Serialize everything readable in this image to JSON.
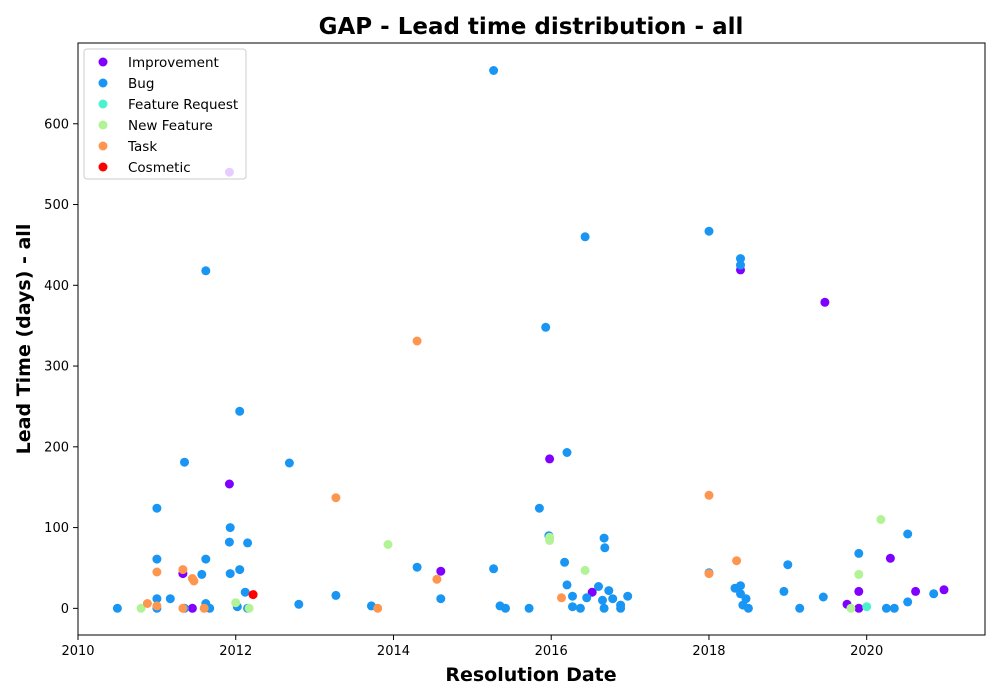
{
  "chart_data": {
    "type": "scatter",
    "title": "GAP - Lead time distribution - all",
    "xlabel": "Resolution Date",
    "ylabel": "Lead Time (days) - all",
    "xlim": [
      2010.0,
      2021.5
    ],
    "ylim": [
      -33,
      700
    ],
    "x_ticks": [
      2010,
      2012,
      2014,
      2016,
      2018,
      2020
    ],
    "y_ticks": [
      0,
      100,
      200,
      300,
      400,
      500,
      600
    ],
    "grid": false,
    "legend_position": "top-left",
    "series": [
      {
        "name": "Improvement",
        "color": "#8000ff",
        "points": [
          [
            2011.33,
            43
          ],
          [
            2011.45,
            0
          ],
          [
            2011.92,
            154
          ],
          [
            2011.92,
            540
          ],
          [
            2014.6,
            46
          ],
          [
            2015.98,
            185
          ],
          [
            2016.52,
            20
          ],
          [
            2018.4,
            419
          ],
          [
            2019.47,
            379
          ],
          [
            2019.75,
            5
          ],
          [
            2019.9,
            0
          ],
          [
            2019.9,
            21
          ],
          [
            2020.3,
            62
          ],
          [
            2020.62,
            21
          ],
          [
            2020.98,
            23
          ]
        ]
      },
      {
        "name": "Bug",
        "color": "#1996f3",
        "points": [
          [
            2010.5,
            0
          ],
          [
            2011.0,
            12
          ],
          [
            2011.0,
            0
          ],
          [
            2011.0,
            61
          ],
          [
            2011.0,
            124
          ],
          [
            2011.17,
            12
          ],
          [
            2011.35,
            181
          ],
          [
            2011.35,
            0
          ],
          [
            2011.57,
            42
          ],
          [
            2011.62,
            418
          ],
          [
            2011.62,
            61
          ],
          [
            2011.62,
            6
          ],
          [
            2011.67,
            0
          ],
          [
            2011.92,
            82
          ],
          [
            2011.93,
            100
          ],
          [
            2011.93,
            43
          ],
          [
            2012.02,
            2
          ],
          [
            2012.05,
            48
          ],
          [
            2012.05,
            244
          ],
          [
            2012.12,
            20
          ],
          [
            2012.15,
            81
          ],
          [
            2012.15,
            0
          ],
          [
            2012.68,
            180
          ],
          [
            2012.8,
            5
          ],
          [
            2013.27,
            16
          ],
          [
            2013.72,
            3
          ],
          [
            2014.3,
            51
          ],
          [
            2014.6,
            12
          ],
          [
            2015.27,
            49
          ],
          [
            2015.27,
            666
          ],
          [
            2015.35,
            3
          ],
          [
            2015.42,
            0
          ],
          [
            2015.72,
            0
          ],
          [
            2015.85,
            124
          ],
          [
            2015.93,
            348
          ],
          [
            2015.97,
            90
          ],
          [
            2016.17,
            57
          ],
          [
            2016.2,
            193
          ],
          [
            2016.2,
            29
          ],
          [
            2016.27,
            15
          ],
          [
            2016.27,
            2
          ],
          [
            2016.37,
            0
          ],
          [
            2016.43,
            460
          ],
          [
            2016.45,
            13
          ],
          [
            2016.6,
            27
          ],
          [
            2016.65,
            10
          ],
          [
            2016.67,
            0
          ],
          [
            2016.67,
            87
          ],
          [
            2016.68,
            75
          ],
          [
            2016.73,
            22
          ],
          [
            2016.78,
            12
          ],
          [
            2016.88,
            4
          ],
          [
            2016.88,
            0
          ],
          [
            2016.97,
            15
          ],
          [
            2018.0,
            467
          ],
          [
            2018.0,
            44
          ],
          [
            2018.33,
            25
          ],
          [
            2018.4,
            433
          ],
          [
            2018.4,
            425
          ],
          [
            2018.4,
            28
          ],
          [
            2018.4,
            18
          ],
          [
            2018.43,
            4
          ],
          [
            2018.47,
            12
          ],
          [
            2018.5,
            0
          ],
          [
            2018.95,
            21
          ],
          [
            2019.0,
            54
          ],
          [
            2019.15,
            0
          ],
          [
            2019.45,
            14
          ],
          [
            2019.9,
            68
          ],
          [
            2020.25,
            0
          ],
          [
            2020.35,
            0
          ],
          [
            2020.52,
            92
          ],
          [
            2020.52,
            8
          ],
          [
            2020.85,
            18
          ]
        ]
      },
      {
        "name": "Feature Request",
        "color": "#4cf2ce",
        "points": [
          [
            2020.0,
            2
          ]
        ]
      },
      {
        "name": "New Feature",
        "color": "#b2f396",
        "points": [
          [
            2010.8,
            0
          ],
          [
            2012.0,
            7
          ],
          [
            2012.17,
            0
          ],
          [
            2013.93,
            79
          ],
          [
            2015.98,
            84
          ],
          [
            2015.98,
            88
          ],
          [
            2016.43,
            47
          ],
          [
            2019.8,
            0
          ],
          [
            2019.9,
            42
          ],
          [
            2020.18,
            110
          ]
        ]
      },
      {
        "name": "Task",
        "color": "#ff964f",
        "points": [
          [
            2010.88,
            6
          ],
          [
            2011.0,
            45
          ],
          [
            2011.0,
            3
          ],
          [
            2011.33,
            48
          ],
          [
            2011.33,
            0
          ],
          [
            2011.45,
            37
          ],
          [
            2011.47,
            34
          ],
          [
            2011.6,
            0
          ],
          [
            2013.27,
            137
          ],
          [
            2013.8,
            0
          ],
          [
            2014.3,
            331
          ],
          [
            2014.55,
            36
          ],
          [
            2016.13,
            13
          ],
          [
            2018.0,
            140
          ],
          [
            2018.0,
            43
          ],
          [
            2018.35,
            59
          ]
        ]
      },
      {
        "name": "Cosmetic",
        "color": "#ff0000",
        "points": [
          [
            2012.22,
            17
          ]
        ]
      }
    ]
  }
}
